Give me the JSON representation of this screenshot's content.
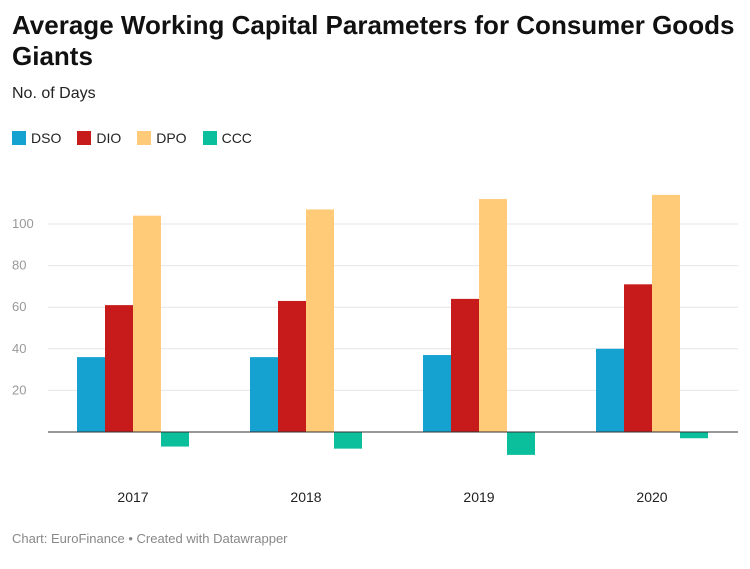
{
  "title": "Average Working Capital Parameters for Consumer Goods Giants",
  "subtitle": "No. of Days",
  "footer": "Chart: EuroFinance • Created with Datawrapper",
  "chart_data": {
    "type": "bar",
    "categories": [
      "2017",
      "2018",
      "2019",
      "2020"
    ],
    "series": [
      {
        "name": "DSO",
        "color": "#16a2d1",
        "values": [
          36,
          36,
          37,
          40
        ]
      },
      {
        "name": "DIO",
        "color": "#c71a1a",
        "values": [
          61,
          63,
          64,
          71
        ]
      },
      {
        "name": "DPO",
        "color": "#ffcb78",
        "values": [
          104,
          107,
          112,
          114
        ]
      },
      {
        "name": "CCC",
        "color": "#0bbf9d",
        "values": [
          -7,
          -8,
          -11,
          -3
        ]
      }
    ],
    "y_ticks": [
      20,
      40,
      60,
      80,
      100
    ],
    "ylim": [
      -20,
      120
    ],
    "grid": true,
    "legend": "top-left",
    "xlabel": "",
    "ylabel": ""
  }
}
